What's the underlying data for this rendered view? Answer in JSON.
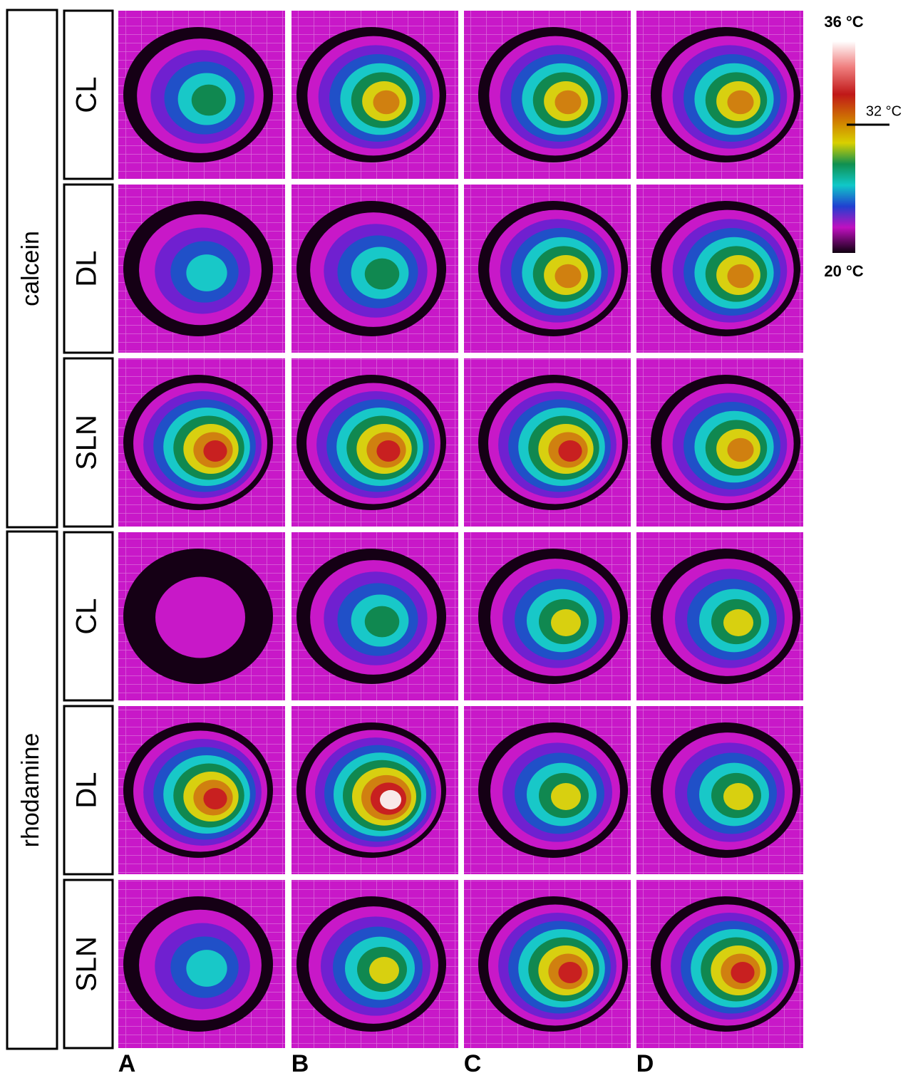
{
  "groups": [
    {
      "label": "calcein",
      "rows": [
        "CL",
        "DL",
        "SLN"
      ]
    },
    {
      "label": "rhodamine",
      "rows": [
        "CL",
        "DL",
        "SLN"
      ]
    }
  ],
  "columns": [
    "A",
    "B",
    "C",
    "D"
  ],
  "colorbar": {
    "max": "36 °C",
    "mark": "32 °C",
    "min": "20 °C"
  }
}
